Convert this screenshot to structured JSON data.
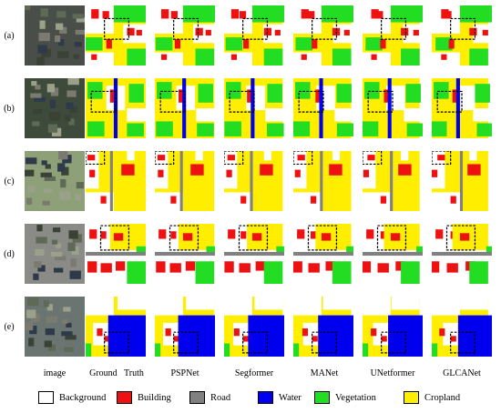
{
  "rows": [
    "(a)",
    "(b)",
    "(c)",
    "(d)",
    "(e)"
  ],
  "columns": [
    "image",
    "Ground   Truth",
    "PSPNet",
    "Segformer",
    "MANet",
    "UNetformer",
    "GLCANet"
  ],
  "legend": [
    {
      "label": "Background",
      "color": "#ffffff"
    },
    {
      "label": "Building",
      "color": "#ee1111"
    },
    {
      "label": "Road",
      "color": "#808080"
    },
    {
      "label": "Water",
      "color": "#0000ee"
    },
    {
      "label": "Vegetation",
      "color": "#22dd22"
    },
    {
      "label": "Cropland",
      "color": "#ffee00"
    }
  ]
}
